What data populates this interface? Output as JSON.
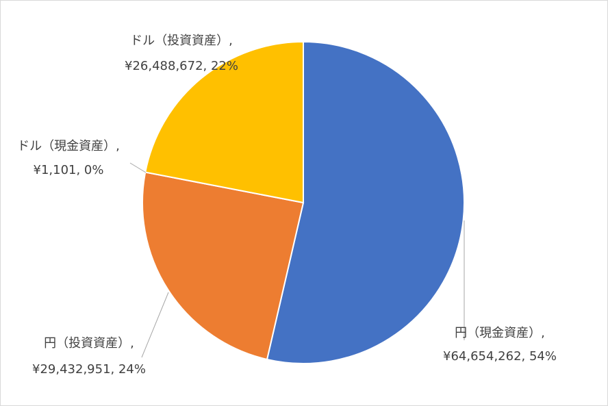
{
  "chart_data": {
    "type": "pie",
    "categories": [
      "円（現金資産）,",
      "円（投資資産）,",
      "ドル（現金資産）,",
      "ドル（投資資産）,"
    ],
    "values": [
      64654262,
      29432951,
      1101,
      26488672
    ],
    "value_labels": [
      "¥64,654,262, 54%",
      "¥29,432,951, 24%",
      "¥1,101, 0%",
      "¥26,488,672, 22%"
    ],
    "colors": [
      "#4472c4",
      "#ed7d31",
      "#a5a5a5",
      "#ffc000"
    ]
  }
}
